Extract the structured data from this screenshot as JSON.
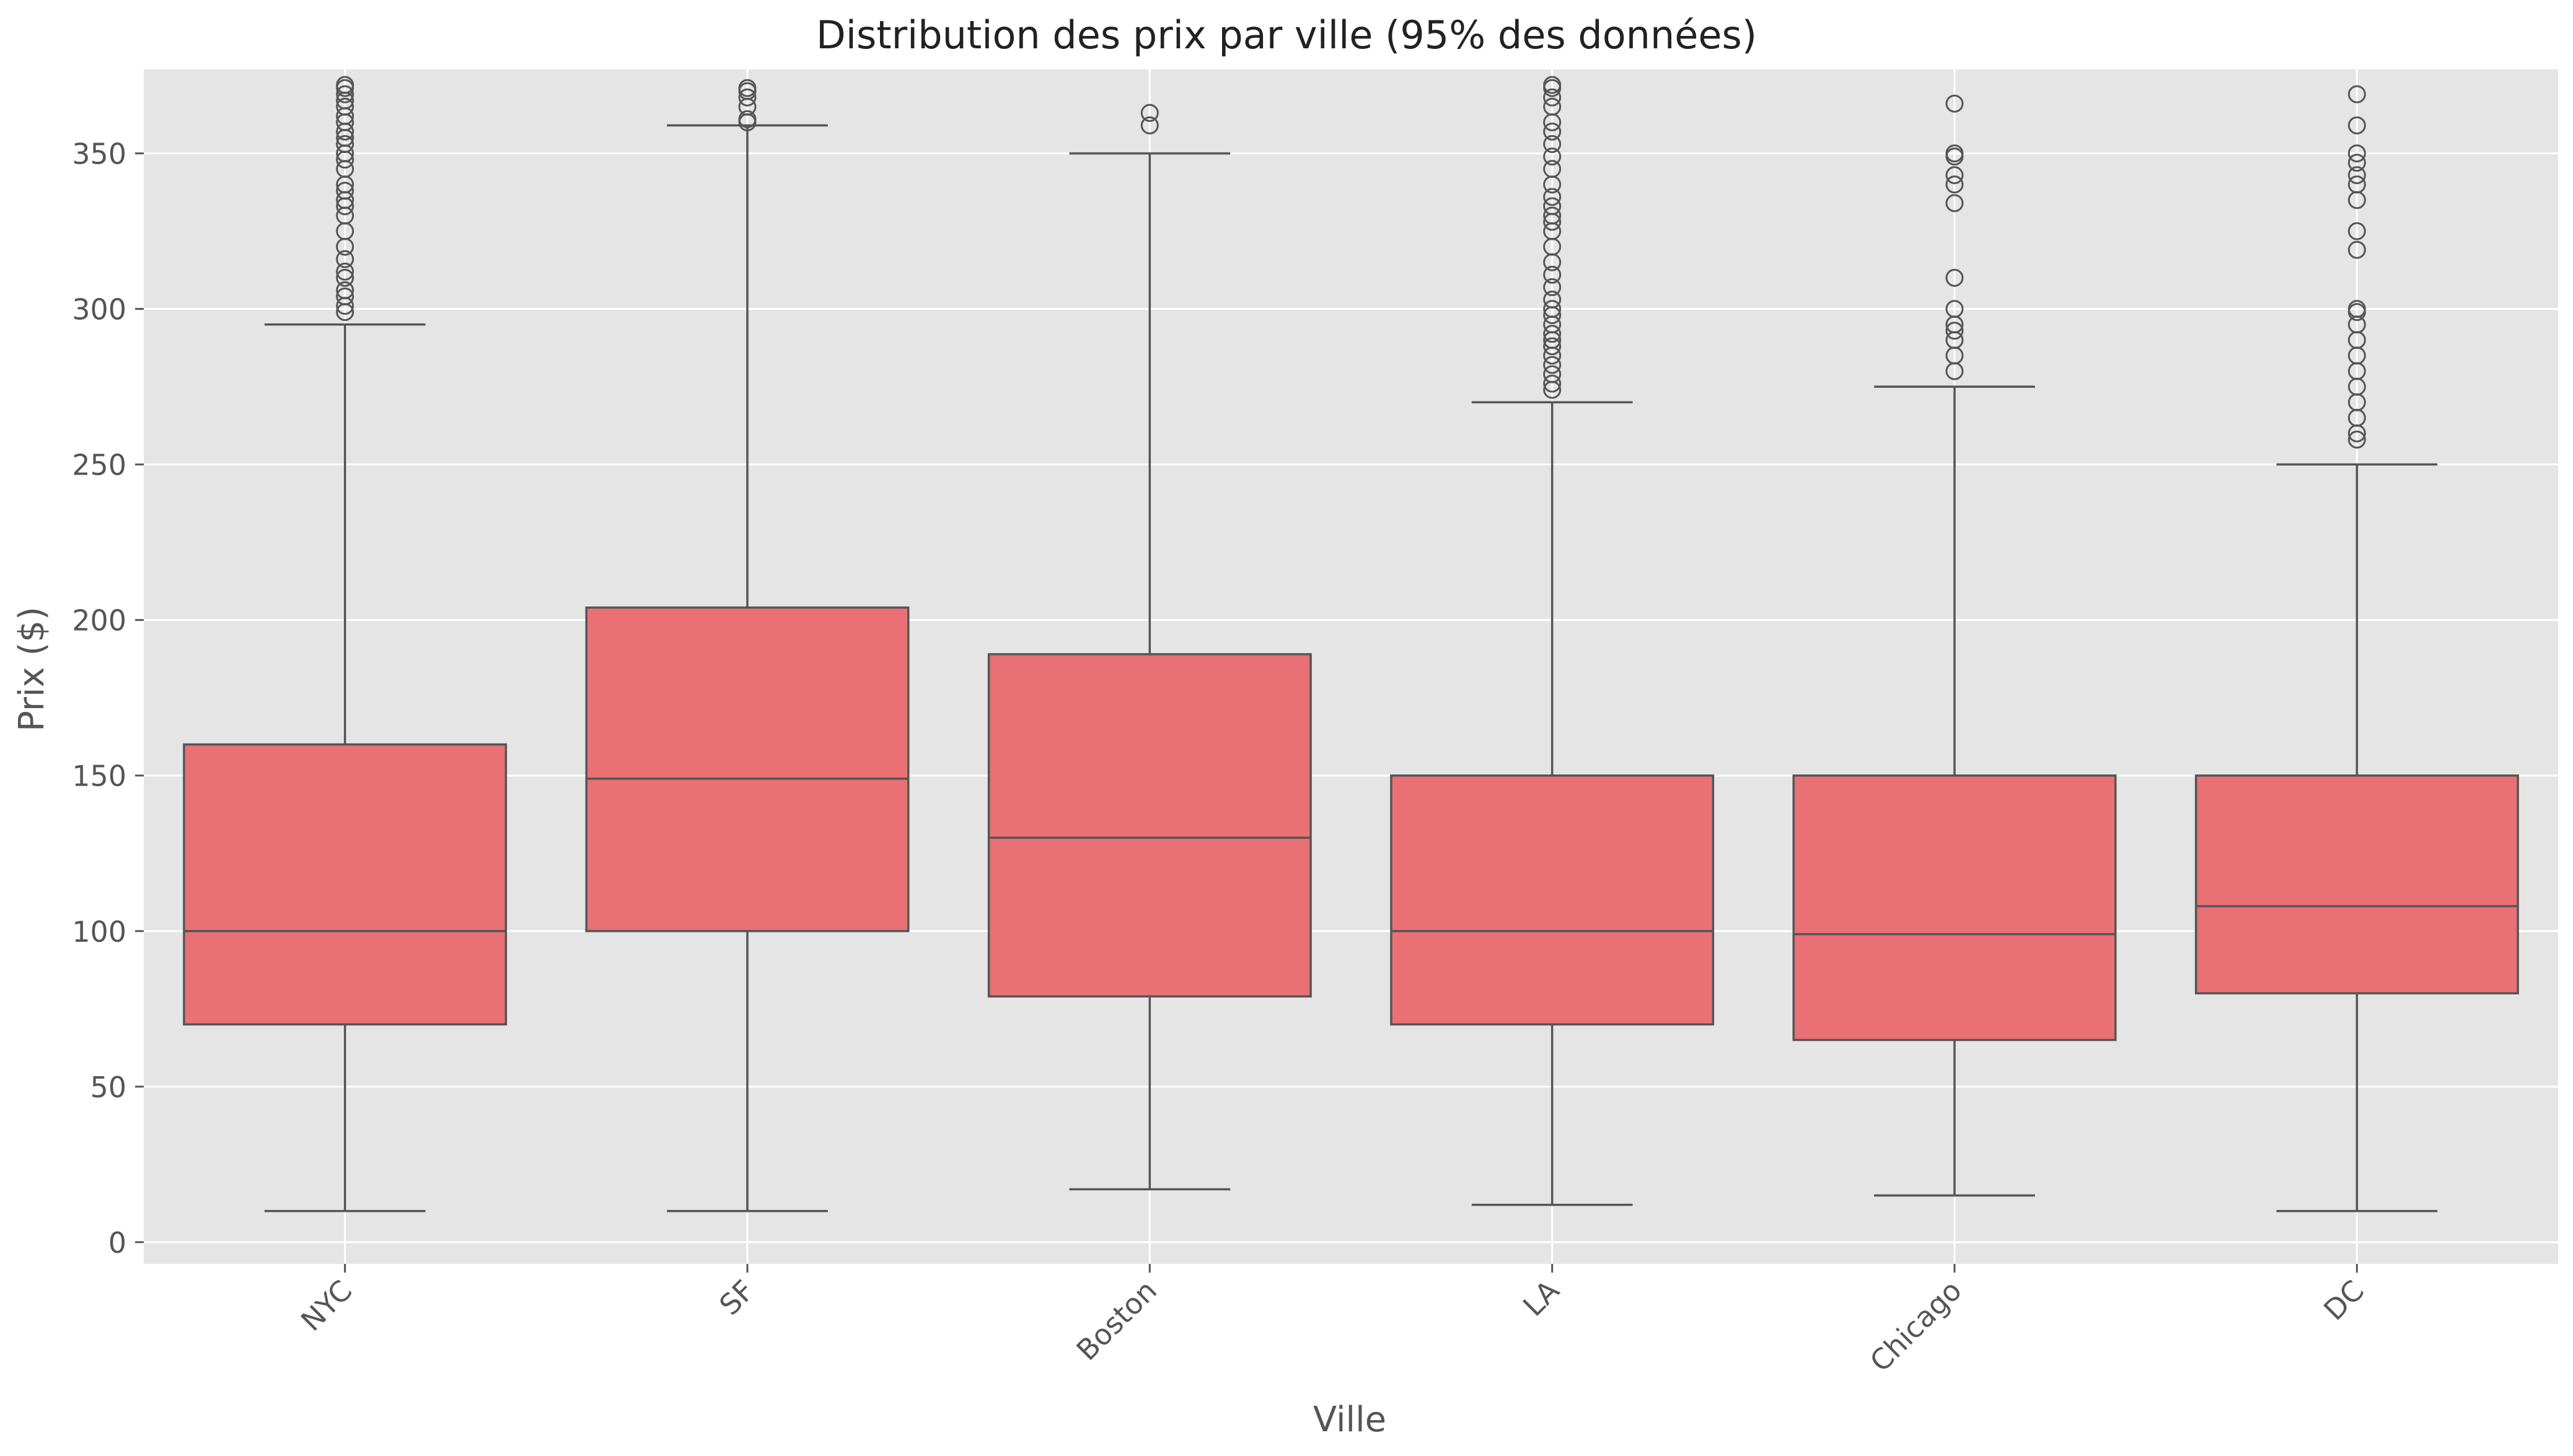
{
  "chart_data": {
    "type": "box",
    "title": "Distribution des prix par ville (95% des données)",
    "xlabel": "Ville",
    "ylabel": "Prix ($)",
    "ylim": [
      -7,
      377
    ],
    "yticks": [
      0,
      50,
      100,
      150,
      200,
      250,
      300,
      350
    ],
    "grid": true,
    "colors": {
      "background": "#e5e5e5",
      "grid": "#ffffff",
      "box_fill": "#e97075",
      "line": "#555555",
      "text": "#222222",
      "tick_text": "#555555"
    },
    "categories": [
      "NYC",
      "SF",
      "Boston",
      "LA",
      "Chicago",
      "DC"
    ],
    "boxes": [
      {
        "name": "NYC",
        "whislo": 10,
        "q1": 70,
        "median": 100,
        "q3": 160,
        "whishi": 295,
        "fliers": [
          299,
          301,
          304,
          306,
          310,
          312,
          316,
          320,
          325,
          330,
          333,
          335,
          338,
          340,
          345,
          348,
          350,
          353,
          355,
          357,
          360,
          362,
          365,
          367,
          369,
          371,
          372
        ]
      },
      {
        "name": "SF",
        "whislo": 10,
        "q1": 100,
        "median": 149,
        "q3": 204,
        "whishi": 359,
        "fliers": [
          360,
          361,
          365,
          368,
          370,
          371
        ]
      },
      {
        "name": "Boston",
        "whislo": 17,
        "q1": 79,
        "median": 130,
        "q3": 189,
        "whishi": 350,
        "fliers": [
          359,
          363
        ]
      },
      {
        "name": "LA",
        "whislo": 12,
        "q1": 70,
        "median": 100,
        "q3": 150,
        "whishi": 270,
        "fliers": [
          274,
          276,
          279,
          282,
          285,
          288,
          290,
          292,
          295,
          298,
          300,
          303,
          307,
          311,
          315,
          320,
          325,
          328,
          330,
          333,
          336,
          340,
          345,
          349,
          353,
          357,
          360,
          365,
          368,
          371,
          372
        ]
      },
      {
        "name": "Chicago",
        "whislo": 15,
        "q1": 65,
        "median": 99,
        "q3": 150,
        "whishi": 275,
        "fliers": [
          280,
          285,
          290,
          293,
          295,
          300,
          310,
          334,
          340,
          343,
          349,
          350,
          366
        ]
      },
      {
        "name": "DC",
        "whislo": 10,
        "q1": 80,
        "median": 108,
        "q3": 150,
        "whishi": 250,
        "fliers": [
          258,
          260,
          265,
          270,
          275,
          280,
          285,
          290,
          295,
          299,
          300,
          319,
          325,
          335,
          340,
          343,
          347,
          350,
          359,
          369
        ]
      }
    ]
  }
}
